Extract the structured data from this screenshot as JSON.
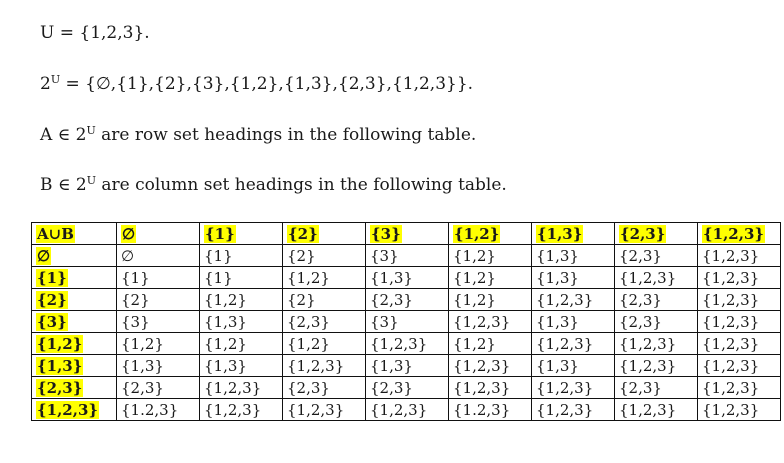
{
  "lines": {
    "line1": "U = {1,2,3}.",
    "line2_prefix": "2",
    "line2_sup": "U",
    "line2_rest": " = {∅,{1},{2},{3},{1,2},{1,3},{2,3},{1,2,3}}.",
    "line3_prefix": "A ∈ 2",
    "line3_sup": "U",
    "line3_rest": " are row set headings in the following table.",
    "line4_prefix": "B ∈ 2",
    "line4_sup": "U",
    "line4_rest": " are column set headings in the following table."
  },
  "table": {
    "corner": "A∪B",
    "column_headers": [
      "∅",
      "{1}",
      "{2}",
      "{3}",
      "{1,2}",
      "{1,3}",
      "{2,3}",
      "{1,2,3}"
    ],
    "rows": [
      {
        "header": "∅",
        "cells": [
          "∅",
          "{1}",
          "{2}",
          "{3}",
          "{1,2}",
          "{1,3}",
          "{2,3}",
          "{1,2,3}"
        ]
      },
      {
        "header": "{1}",
        "cells": [
          "{1}",
          "{1}",
          "{1,2}",
          "{1,3}",
          "{1,2}",
          "{1,3}",
          "{1,2,3}",
          "{1,2,3}"
        ]
      },
      {
        "header": "{2}",
        "cells": [
          "{2}",
          "{1,2}",
          "{2}",
          "{2,3}",
          "{1,2}",
          "{1,2,3}",
          "{2,3}",
          "{1,2,3}"
        ]
      },
      {
        "header": "{3}",
        "cells": [
          "{3}",
          "{1,3}",
          "{2,3}",
          "{3}",
          "{1,2,3}",
          "{1,3}",
          "{2,3}",
          "{1,2,3}"
        ]
      },
      {
        "header": "{1,2}",
        "cells": [
          "{1,2}",
          "{1,2}",
          "{1,2}",
          "{1,2,3}",
          "{1,2}",
          "{1,2,3}",
          "{1,2,3}",
          "{1,2,3}"
        ]
      },
      {
        "header": "{1,3}",
        "cells": [
          "{1,3}",
          "{1,3}",
          "{1,2,3}",
          "{1,3}",
          "{1,2,3}",
          "{1,3}",
          "{1,2,3}",
          "{1,2,3}"
        ]
      },
      {
        "header": "{2,3}",
        "cells": [
          "{2,3}",
          "{1,2,3}",
          "{2,3}",
          "{2,3}",
          "{1,2,3}",
          "{1,2,3}",
          "{2,3}",
          "{1,2,3}"
        ]
      },
      {
        "header": "{1,2,3}",
        "cells": [
          "{1.2,3}",
          "{1,2,3}",
          "{1,2,3}",
          "{1,2,3}",
          "{1.2,3}",
          "{1,2,3}",
          "{1,2,3}",
          "{1,2,3}"
        ]
      }
    ]
  },
  "colors": {
    "highlight": "#ffff00",
    "border": "#111111",
    "text": "#1a1a1a"
  }
}
